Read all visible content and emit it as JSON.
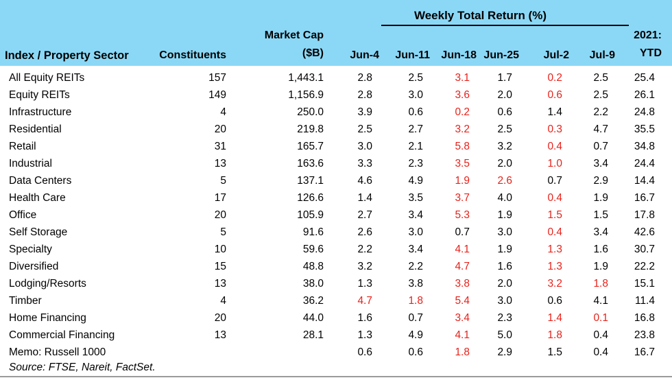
{
  "colors": {
    "header_bg": "#8bd8f6",
    "negative_text": "#e8211a",
    "default_text": "#000000",
    "bottom_rule": "#9b9b9b"
  },
  "chart_data": {
    "type": "table",
    "header": {
      "group_label": "Weekly Total Return (%)",
      "sector": "Index / Property Sector",
      "constituents": "Constituents",
      "market_cap": [
        "Market Cap",
        "($B)"
      ],
      "weeks": [
        "Jun-4",
        "Jun-11",
        "Jun-18",
        "Jun-25",
        "Jul-2",
        "Jul-9"
      ],
      "ytd": [
        "2021:",
        "YTD"
      ]
    },
    "rows": [
      {
        "sector": "All Equity REITs",
        "constituents": "157",
        "market_cap": "1,443.1",
        "weekly": [
          "2.8",
          "2.5",
          "3.1",
          "1.7",
          "0.2",
          "2.5"
        ],
        "weekly_red": [
          false,
          false,
          true,
          false,
          true,
          false
        ],
        "ytd": "25.4"
      },
      {
        "sector": "Equity REITs",
        "constituents": "149",
        "market_cap": "1,156.9",
        "weekly": [
          "2.8",
          "3.0",
          "3.6",
          "2.0",
          "0.6",
          "2.5"
        ],
        "weekly_red": [
          false,
          false,
          true,
          false,
          true,
          false
        ],
        "ytd": "26.1"
      },
      {
        "sector": "Infrastructure",
        "constituents": "4",
        "market_cap": "250.0",
        "weekly": [
          "3.9",
          "0.6",
          "0.2",
          "0.6",
          "1.4",
          "2.2"
        ],
        "weekly_red": [
          false,
          false,
          true,
          false,
          false,
          false
        ],
        "ytd": "24.8"
      },
      {
        "sector": "Residential",
        "constituents": "20",
        "market_cap": "219.8",
        "weekly": [
          "2.5",
          "2.7",
          "3.2",
          "2.5",
          "0.3",
          "4.7"
        ],
        "weekly_red": [
          false,
          false,
          true,
          false,
          true,
          false
        ],
        "ytd": "35.5"
      },
      {
        "sector": "Retail",
        "constituents": "31",
        "market_cap": "165.7",
        "weekly": [
          "3.0",
          "2.1",
          "5.8",
          "3.2",
          "0.4",
          "0.7"
        ],
        "weekly_red": [
          false,
          false,
          true,
          false,
          true,
          false
        ],
        "ytd": "34.8"
      },
      {
        "sector": "Industrial",
        "constituents": "13",
        "market_cap": "163.6",
        "weekly": [
          "3.3",
          "2.3",
          "3.5",
          "2.0",
          "1.0",
          "3.4"
        ],
        "weekly_red": [
          false,
          false,
          true,
          false,
          true,
          false
        ],
        "ytd": "24.4"
      },
      {
        "sector": "Data Centers",
        "constituents": "5",
        "market_cap": "137.1",
        "weekly": [
          "4.6",
          "4.9",
          "1.9",
          "2.6",
          "0.7",
          "2.9"
        ],
        "weekly_red": [
          false,
          false,
          true,
          true,
          false,
          false
        ],
        "ytd": "14.4"
      },
      {
        "sector": "Health Care",
        "constituents": "17",
        "market_cap": "126.6",
        "weekly": [
          "1.4",
          "3.5",
          "3.7",
          "4.0",
          "0.4",
          "1.9"
        ],
        "weekly_red": [
          false,
          false,
          true,
          false,
          true,
          false
        ],
        "ytd": "16.7"
      },
      {
        "sector": "Office",
        "constituents": "20",
        "market_cap": "105.9",
        "weekly": [
          "2.7",
          "3.4",
          "5.3",
          "1.9",
          "1.5",
          "1.5"
        ],
        "weekly_red": [
          false,
          false,
          true,
          false,
          true,
          false
        ],
        "ytd": "17.8"
      },
      {
        "sector": "Self Storage",
        "constituents": "5",
        "market_cap": "91.6",
        "weekly": [
          "2.6",
          "3.0",
          "0.7",
          "3.0",
          "0.4",
          "3.4"
        ],
        "weekly_red": [
          false,
          false,
          false,
          false,
          true,
          false
        ],
        "ytd": "42.6"
      },
      {
        "sector": "Specialty",
        "constituents": "10",
        "market_cap": "59.6",
        "weekly": [
          "2.2",
          "3.4",
          "4.1",
          "1.9",
          "1.3",
          "1.6"
        ],
        "weekly_red": [
          false,
          false,
          true,
          false,
          true,
          false
        ],
        "ytd": "30.7"
      },
      {
        "sector": "Diversified",
        "constituents": "15",
        "market_cap": "48.8",
        "weekly": [
          "3.2",
          "2.2",
          "4.7",
          "1.6",
          "1.3",
          "1.9"
        ],
        "weekly_red": [
          false,
          false,
          true,
          false,
          true,
          false
        ],
        "ytd": "22.2"
      },
      {
        "sector": "Lodging/Resorts",
        "constituents": "13",
        "market_cap": "38.0",
        "weekly": [
          "1.3",
          "3.8",
          "3.8",
          "2.0",
          "3.2",
          "1.8"
        ],
        "weekly_red": [
          false,
          false,
          true,
          false,
          true,
          true
        ],
        "ytd": "15.1"
      },
      {
        "sector": "Timber",
        "constituents": "4",
        "market_cap": "36.2",
        "weekly": [
          "4.7",
          "1.8",
          "5.4",
          "3.0",
          "0.6",
          "4.1"
        ],
        "weekly_red": [
          true,
          true,
          true,
          false,
          false,
          false
        ],
        "ytd": "11.4"
      },
      {
        "sector": "Home Financing",
        "constituents": "20",
        "market_cap": "44.0",
        "weekly": [
          "1.6",
          "0.7",
          "3.4",
          "2.3",
          "1.4",
          "0.1"
        ],
        "weekly_red": [
          false,
          false,
          true,
          false,
          true,
          true
        ],
        "ytd": "16.8"
      },
      {
        "sector": "Commercial Financing",
        "constituents": "13",
        "market_cap": "28.1",
        "weekly": [
          "1.3",
          "4.9",
          "4.1",
          "5.0",
          "1.8",
          "0.4"
        ],
        "weekly_red": [
          false,
          false,
          true,
          false,
          true,
          false
        ],
        "ytd": "23.8"
      },
      {
        "sector": "Memo: Russell 1000",
        "constituents": "",
        "market_cap": "",
        "weekly": [
          "0.6",
          "0.6",
          "1.8",
          "2.9",
          "1.5",
          "0.4"
        ],
        "weekly_red": [
          false,
          false,
          true,
          false,
          false,
          false
        ],
        "ytd": "16.7"
      }
    ],
    "source_note": "Source: FTSE, Nareit, FactSet."
  }
}
